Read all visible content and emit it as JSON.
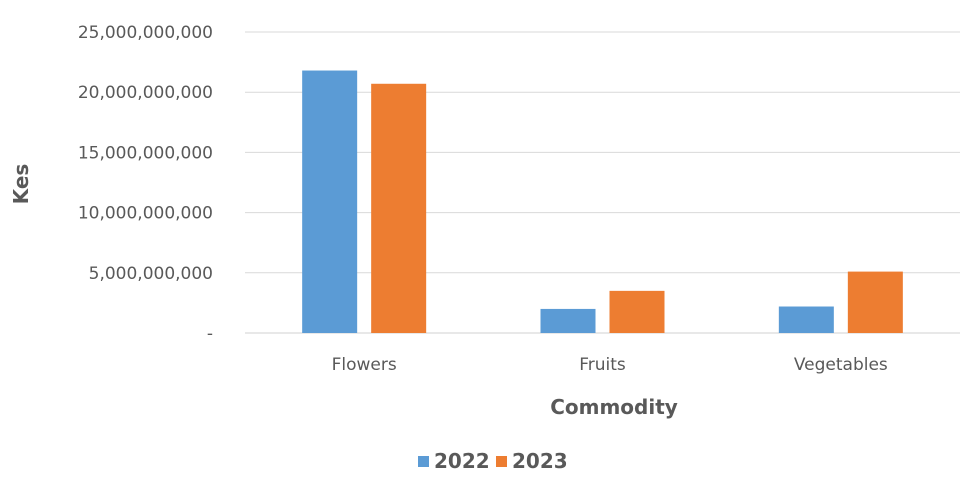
{
  "chart_data": {
    "type": "bar",
    "title": "",
    "xlabel": "Commodity",
    "ylabel": "Kes",
    "categories": [
      "Flowers",
      "Fruits",
      "Vegetables"
    ],
    "series": [
      {
        "name": "2022",
        "color": "#5B9BD5",
        "values": [
          21800000000,
          2000000000,
          2200000000
        ]
      },
      {
        "name": "2023",
        "color": "#ED7D31",
        "values": [
          20700000000,
          3500000000,
          5100000000
        ]
      }
    ],
    "ylim": [
      0,
      25000000000
    ],
    "yticks": [
      {
        "value": 0,
        "label": "-"
      },
      {
        "value": 5000000000,
        "label": "5,000,000,000"
      },
      {
        "value": 10000000000,
        "label": "10,000,000,000"
      },
      {
        "value": 15000000000,
        "label": "15,000,000,000"
      },
      {
        "value": 20000000000,
        "label": "20,000,000,000"
      },
      {
        "value": 25000000000,
        "label": "25,000,000,000"
      }
    ],
    "grid": true,
    "legend_position": "bottom"
  }
}
